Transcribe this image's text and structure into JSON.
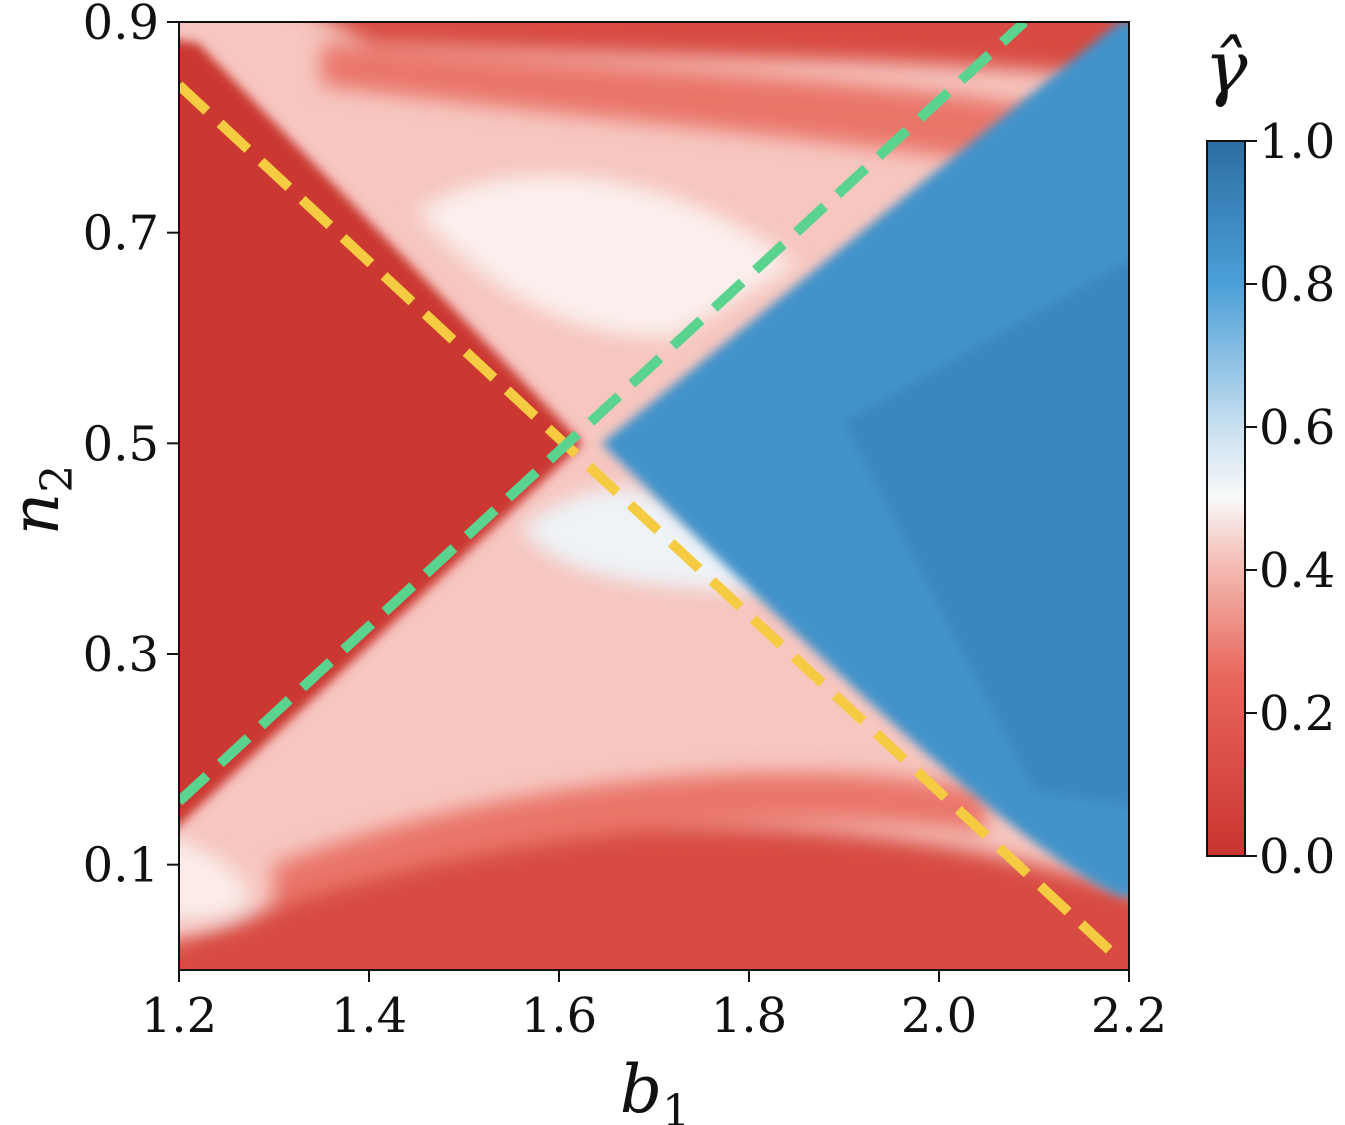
{
  "chart_data": {
    "type": "heatmap",
    "xlabel": "b",
    "xlabel_sub": "1",
    "ylabel": "n",
    "ylabel_sub": "2",
    "xlim": [
      1.2,
      2.2
    ],
    "ylim": [
      0.0,
      0.9
    ],
    "x_ticks": [
      1.2,
      1.4,
      1.6,
      1.8,
      2.0,
      2.2
    ],
    "x_tick_labels": [
      "1.2",
      "1.4",
      "1.6",
      "1.8",
      "2.0",
      "2.2"
    ],
    "y_ticks": [
      0.1,
      0.3,
      0.5,
      0.7,
      0.9
    ],
    "y_tick_labels": [
      "0.1",
      "0.3",
      "0.5",
      "0.7",
      "0.9"
    ],
    "colorbar": {
      "label": "γ̂",
      "range": [
        0.0,
        1.0
      ],
      "ticks": [
        0.0,
        0.2,
        0.4,
        0.6,
        0.8,
        1.0
      ],
      "tick_labels": [
        "0.0",
        "0.2",
        "0.4",
        "0.6",
        "0.8",
        "1.0"
      ],
      "colormap_stops": [
        {
          "value": 0.0,
          "color": "#c9342e"
        },
        {
          "value": 0.25,
          "color": "#e8665a"
        },
        {
          "value": 0.42,
          "color": "#f4c3bc"
        },
        {
          "value": 0.5,
          "color": "#f9f9f9"
        },
        {
          "value": 0.6,
          "color": "#c8dff0"
        },
        {
          "value": 0.8,
          "color": "#4b9fd7"
        },
        {
          "value": 1.0,
          "color": "#2c6ea3"
        }
      ]
    },
    "regions": [
      {
        "name": "left wedge",
        "value": 0.02
      },
      {
        "name": "right wedge",
        "value": 0.85
      },
      {
        "name": "top and bottom wedges",
        "value": 0.35
      }
    ],
    "lines": [
      {
        "color": "#f5cb42",
        "style": "dashed",
        "x": [
          1.2,
          2.19
        ],
        "y": [
          0.84,
          0.01
        ]
      },
      {
        "color": "#5ad38f",
        "style": "dashed",
        "x": [
          1.2,
          2.09
        ],
        "y": [
          0.16,
          0.9
        ]
      }
    ]
  }
}
